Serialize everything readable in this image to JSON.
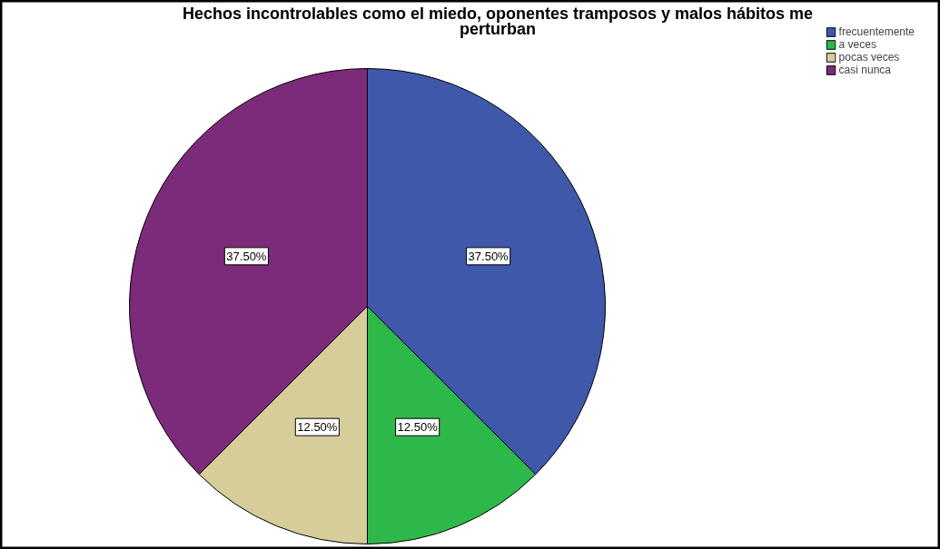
{
  "chart_data": {
    "type": "pie",
    "title": "Hechos incontrolables como el miedo, oponentes tramposos y malos hábitos me perturban",
    "categories": [
      "frecuentemente",
      "a veces",
      "pocas veces",
      "casi nunca"
    ],
    "values": [
      37.5,
      12.5,
      12.5,
      37.5
    ],
    "colors": [
      "#3f58a9",
      "#2fb84a",
      "#d6cd9a",
      "#7c2a7a"
    ],
    "value_labels": [
      "37.50%",
      "12.50%",
      "12.50%",
      "37.50%"
    ],
    "legend": "top right"
  }
}
